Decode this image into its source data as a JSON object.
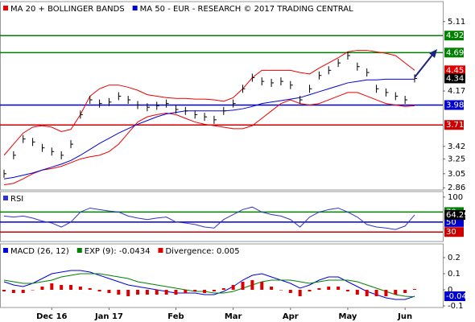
{
  "chart_data": [
    {
      "type": "line",
      "categories": [
        null,
        null,
        null,
        null,
        null,
        "Dec 16",
        null,
        null,
        null,
        null,
        null,
        "Jan 17",
        null,
        null,
        null,
        null,
        null,
        null,
        "Feb",
        null,
        null,
        null,
        null,
        null,
        "Mar",
        null,
        null,
        null,
        null,
        null,
        "Apr",
        null,
        null,
        null,
        null,
        null,
        "May",
        null,
        null,
        null,
        null,
        null,
        "Jun",
        null
      ],
      "ylim": [
        2.83,
        5.38
      ],
      "yticks": [
        5.11,
        4.17,
        3.42,
        3.25,
        3.05,
        2.86
      ],
      "levels": [
        {
          "value": 4.92,
          "color": "#008000"
        },
        {
          "value": 4.69,
          "color": "#008000"
        },
        {
          "value": 3.98,
          "color": "#0000cc"
        },
        {
          "value": 3.71,
          "color": "#cc0000"
        }
      ],
      "markers": [
        {
          "value": 4.45,
          "color": "#e00000"
        },
        {
          "value": 4.34,
          "color": "#000000"
        }
      ],
      "price": {
        "color": "#000000",
        "values": [
          3.05,
          3.3,
          3.52,
          3.48,
          3.4,
          3.35,
          3.3,
          3.45,
          3.85,
          4.05,
          4.0,
          4.02,
          4.1,
          4.05,
          3.98,
          3.95,
          3.97,
          4.0,
          3.92,
          3.9,
          3.85,
          3.82,
          3.78,
          3.9,
          4.0,
          4.2,
          4.35,
          4.3,
          4.28,
          4.3,
          4.25,
          4.05,
          4.2,
          4.38,
          4.45,
          4.55,
          4.65,
          4.5,
          4.42,
          4.2,
          4.15,
          4.1,
          4.05,
          4.34
        ]
      },
      "series": [
        {
          "name": "MA 20 + BOLLINGER BANDS",
          "color": "#ee0000",
          "upper": [
            3.3,
            3.45,
            3.6,
            3.68,
            3.7,
            3.68,
            3.62,
            3.65,
            3.85,
            4.1,
            4.2,
            4.25,
            4.25,
            4.22,
            4.18,
            4.12,
            4.1,
            4.08,
            4.07,
            4.07,
            4.06,
            4.06,
            4.05,
            4.03,
            4.08,
            4.2,
            4.35,
            4.45,
            4.45,
            4.45,
            4.45,
            4.42,
            4.4,
            4.48,
            4.55,
            4.62,
            4.7,
            4.72,
            4.72,
            4.7,
            4.68,
            4.65,
            4.55,
            4.45
          ],
          "lower": [
            2.9,
            2.92,
            2.98,
            3.05,
            3.1,
            3.12,
            3.15,
            3.2,
            3.25,
            3.28,
            3.3,
            3.35,
            3.45,
            3.6,
            3.75,
            3.82,
            3.85,
            3.87,
            3.85,
            3.8,
            3.75,
            3.72,
            3.7,
            3.68,
            3.66,
            3.66,
            3.7,
            3.8,
            3.9,
            4.0,
            4.05,
            4.0,
            3.98,
            4.0,
            4.05,
            4.1,
            4.15,
            4.15,
            4.1,
            4.05,
            4.0,
            3.98,
            3.96,
            3.97
          ]
        },
        {
          "name": "MA 50 - EUR - RESEARCH © 2017 TRADING CENTRAL",
          "color": "#0000dd",
          "values": [
            2.98,
            3.0,
            3.03,
            3.06,
            3.1,
            3.14,
            3.18,
            3.23,
            3.3,
            3.38,
            3.46,
            3.53,
            3.6,
            3.66,
            3.72,
            3.77,
            3.82,
            3.86,
            3.88,
            3.9,
            3.9,
            3.9,
            3.9,
            3.9,
            3.91,
            3.93,
            3.96,
            4.0,
            4.02,
            4.04,
            4.06,
            4.08,
            4.12,
            4.16,
            4.2,
            4.24,
            4.28,
            4.3,
            4.32,
            4.32,
            4.33,
            4.33,
            4.33,
            4.33
          ]
        }
      ]
    },
    {
      "type": "line",
      "ylim": [
        11,
        111
      ],
      "yticks": [
        100
      ],
      "levels": [
        {
          "value": 70,
          "color": "#008000"
        },
        {
          "value": 50,
          "color": "#0000cc"
        },
        {
          "value": 30,
          "color": "#cc0000"
        }
      ],
      "markers": [
        {
          "value": 64.29,
          "color": "#000000"
        }
      ],
      "series": [
        {
          "name": "RSI",
          "color": "#3333cc",
          "values": [
            62,
            60,
            62,
            58,
            52,
            48,
            40,
            50,
            70,
            78,
            75,
            72,
            70,
            62,
            58,
            55,
            58,
            60,
            50,
            48,
            45,
            40,
            38,
            55,
            65,
            75,
            80,
            70,
            65,
            62,
            55,
            40,
            60,
            70,
            75,
            78,
            70,
            60,
            45,
            40,
            38,
            35,
            42,
            64.29
          ]
        }
      ]
    },
    {
      "type": "line",
      "ylim": [
        -0.11,
        0.285
      ],
      "yticks": [
        0.2,
        0.1,
        0,
        -0.1
      ],
      "markers": [
        {
          "value": -0.04,
          "color": "#0000cc"
        }
      ],
      "series": [
        {
          "name": "MACD (26, 12)",
          "color": "#0000dd",
          "values": [
            0.05,
            0.03,
            0.02,
            0.04,
            0.07,
            0.1,
            0.11,
            0.12,
            0.12,
            0.11,
            0.09,
            0.07,
            0.05,
            0.03,
            0.02,
            0.01,
            0.0,
            -0.01,
            -0.02,
            -0.02,
            -0.02,
            -0.03,
            -0.03,
            -0.01,
            0.02,
            0.06,
            0.09,
            0.1,
            0.08,
            0.06,
            0.04,
            0.01,
            0.03,
            0.06,
            0.08,
            0.08,
            0.05,
            0.02,
            -0.01,
            -0.03,
            -0.05,
            -0.06,
            -0.06,
            -0.04
          ]
        },
        {
          "name": "EXP (9): -0.0434",
          "color": "#008000",
          "values": [
            0.06,
            0.05,
            0.04,
            0.04,
            0.05,
            0.06,
            0.08,
            0.09,
            0.1,
            0.1,
            0.1,
            0.09,
            0.08,
            0.07,
            0.05,
            0.04,
            0.03,
            0.02,
            0.01,
            0.0,
            -0.01,
            -0.01,
            -0.02,
            -0.02,
            -0.01,
            0.01,
            0.03,
            0.05,
            0.06,
            0.06,
            0.06,
            0.05,
            0.04,
            0.05,
            0.06,
            0.06,
            0.06,
            0.05,
            0.03,
            0.01,
            -0.01,
            -0.03,
            -0.04,
            -0.0434
          ]
        },
        {
          "name": "Divergence: 0.005",
          "color": "#dd0000",
          "type": "bar",
          "values": [
            -0.01,
            -0.02,
            -0.02,
            0,
            0.02,
            0.04,
            0.03,
            0.03,
            0.02,
            0.01,
            -0.01,
            -0.02,
            -0.03,
            -0.04,
            -0.03,
            -0.03,
            -0.03,
            -0.03,
            -0.03,
            -0.02,
            -0.01,
            -0.02,
            -0.01,
            0.01,
            0.03,
            0.05,
            0.06,
            0.05,
            0.02,
            0,
            -0.02,
            -0.04,
            -0.01,
            0.01,
            0.02,
            0.02,
            -0.01,
            -0.03,
            -0.04,
            -0.04,
            -0.04,
            -0.03,
            -0.02,
            0.005
          ]
        }
      ]
    }
  ]
}
